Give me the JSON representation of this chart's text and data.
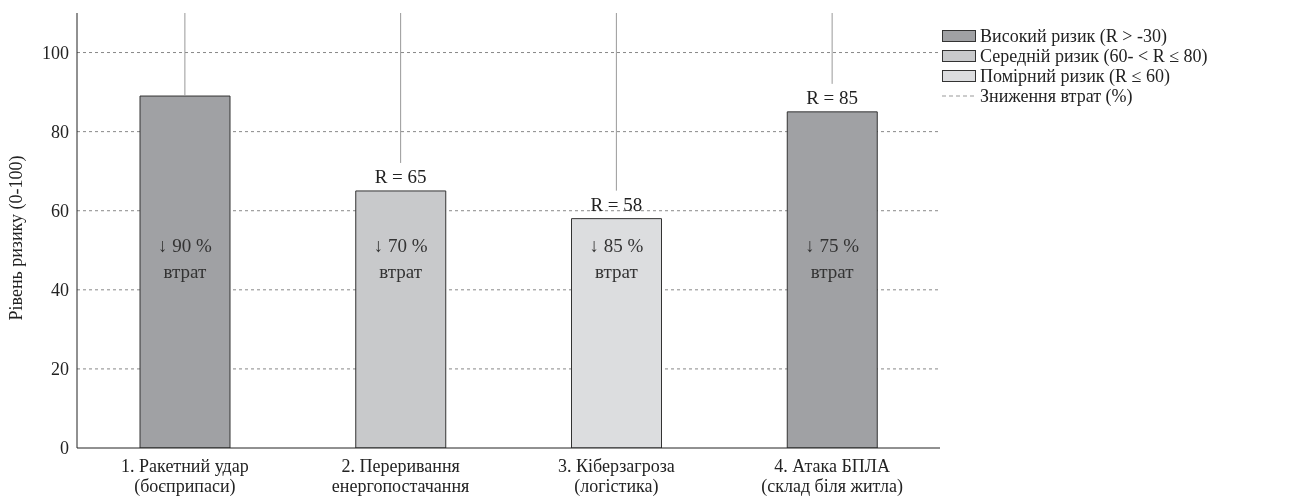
{
  "chart_data": {
    "type": "bar",
    "ylabel": "Рівень ризику (0-100)",
    "categories": [
      "1. Ракетний удар\n(боєприпаси)",
      "2. Переривання\nенергопостачання",
      "3. Кіберзагроза\n(логістика)",
      "4. Атака БПЛА\n(склад біля житла)"
    ],
    "series": [
      {
        "name": "Високий ризик (R > -30)",
        "color": "#a0a1a4",
        "values": [
          89,
          null,
          null,
          85
        ],
        "value_labels": [
          null,
          null,
          null,
          "R = 85"
        ]
      },
      {
        "name": "Середній ризик (60- < R ≤ 80)",
        "color": "#c8c9cb",
        "values": [
          null,
          65,
          null,
          null
        ],
        "value_labels": [
          null,
          "R = 65",
          null,
          null
        ]
      },
      {
        "name": "Помірний ризик (R ≤ 60)",
        "color": "#dcdddf",
        "values": [
          null,
          null,
          58,
          null
        ],
        "value_labels": [
          null,
          null,
          "R = 58",
          null
        ]
      },
      {
        "name": "Зниження втрат (%)",
        "type": "line",
        "color": "#999999",
        "line_style": "dashed",
        "values": [
          null,
          null,
          null,
          null
        ]
      }
    ],
    "stacked": true,
    "annotations": [
      "↓ 90 %\nвтрат",
      "↓ 70 %\nвтрат",
      "↓ 85 %\nвтрат",
      "↓ 75 %\nвтрат"
    ],
    "ylim": [
      0,
      110
    ],
    "yticks": [
      0,
      20,
      40,
      60,
      80,
      100
    ],
    "grid": "y",
    "legend": "top right"
  }
}
